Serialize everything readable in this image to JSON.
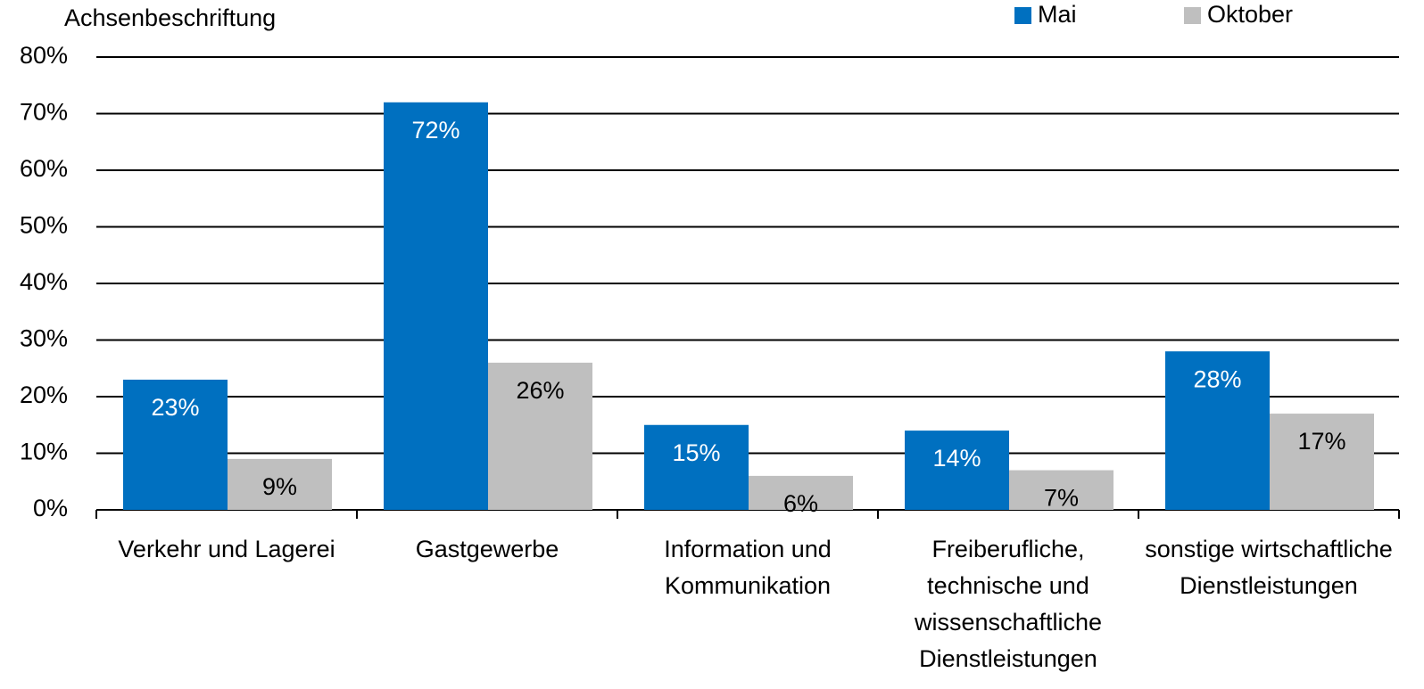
{
  "chart_data": {
    "type": "bar",
    "y_label": "Achsenbeschriftung",
    "categories": [
      "Verkehr und Lagerei",
      "Gastgewerbe",
      "Information und Kommunikation",
      "Freiberufliche, technische und wissenschaftliche Dienstleistungen",
      "sonstige wirtschaftliche Dienstleistungen"
    ],
    "series": [
      {
        "name": "Mai",
        "color": "#0070c0",
        "values": [
          23,
          72,
          15,
          14,
          28
        ],
        "value_labels": [
          "23%",
          "72%",
          "15%",
          "14%",
          "28%"
        ]
      },
      {
        "name": "Oktober",
        "color": "#bfbfbf",
        "values": [
          9,
          26,
          6,
          7,
          17
        ],
        "value_labels": [
          "9%",
          "26%",
          "6%",
          "7%",
          "17%"
        ]
      }
    ],
    "ylim": [
      0,
      80
    ],
    "yticks": [
      {
        "value": 0,
        "label": "0%"
      },
      {
        "value": 10,
        "label": "10%"
      },
      {
        "value": 20,
        "label": "20%"
      },
      {
        "value": 30,
        "label": "30%"
      },
      {
        "value": 40,
        "label": "40%"
      },
      {
        "value": 50,
        "label": "50%"
      },
      {
        "value": 60,
        "label": "60%"
      },
      {
        "value": 70,
        "label": "70%"
      },
      {
        "value": 80,
        "label": "80%"
      }
    ],
    "grid": true,
    "legend": "top-right"
  }
}
